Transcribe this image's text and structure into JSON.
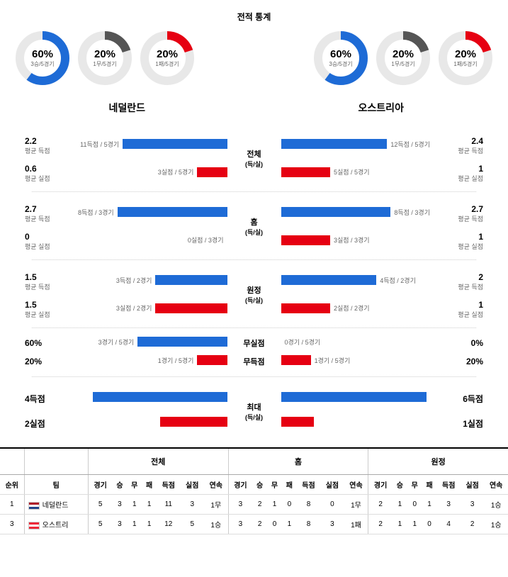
{
  "title": "전적 통계",
  "colors": {
    "blue": "#1e6bd6",
    "red": "#e60012",
    "gray": "#555",
    "arcbg": "#e8e8e8"
  },
  "teams": {
    "left": "네덜란드",
    "right": "오스트리아"
  },
  "donuts": {
    "left": [
      {
        "pct": "60%",
        "sub": "3승/5경기",
        "value": 60,
        "color": "#1e6bd6"
      },
      {
        "pct": "20%",
        "sub": "1무/5경기",
        "value": 20,
        "color": "#555"
      },
      {
        "pct": "20%",
        "sub": "1패/5경기",
        "value": 20,
        "color": "#e60012"
      }
    ],
    "right": [
      {
        "pct": "60%",
        "sub": "3승/5경기",
        "value": 60,
        "color": "#1e6bd6"
      },
      {
        "pct": "20%",
        "sub": "1무/5경기",
        "value": 20,
        "color": "#555"
      },
      {
        "pct": "20%",
        "sub": "1패/5경기",
        "value": 20,
        "color": "#e60012"
      }
    ]
  },
  "sections": [
    {
      "center": "전체",
      "centerSub": "(득/실)",
      "rows": [
        {
          "lVal": "2.2",
          "lSub": "평균 득점",
          "lBar": 70,
          "lBarLabel": "11득점 / 5경기",
          "lColor": "#1e6bd6",
          "rVal": "2.4",
          "rSub": "평균 득점",
          "rBar": 76,
          "rBarLabel": "12득점 / 5경기",
          "rColor": "#1e6bd6"
        },
        {
          "lVal": "0.6",
          "lSub": "평균 실점",
          "lBar": 20,
          "lBarLabel": "3실점 / 5경기",
          "lColor": "#e60012",
          "rVal": "1",
          "rSub": "평균 실점",
          "rBar": 33,
          "rBarLabel": "5실점 / 5경기",
          "rColor": "#e60012"
        }
      ]
    },
    {
      "center": "홈",
      "centerSub": "(득/실)",
      "rows": [
        {
          "lVal": "2.7",
          "lSub": "평균 득점",
          "lBar": 86,
          "lBarLabel": "8득점 / 3경기",
          "lColor": "#1e6bd6",
          "rVal": "2.7",
          "rSub": "평균 득점",
          "rBar": 86,
          "rBarLabel": "8득점 / 3경기",
          "rColor": "#1e6bd6"
        },
        {
          "lVal": "0",
          "lSub": "평균 실점",
          "lBar": 0,
          "lBarLabel": "0실점 / 3경기",
          "lColor": "#e60012",
          "rVal": "1",
          "rSub": "평균 실점",
          "rBar": 33,
          "rBarLabel": "3실점 / 3경기",
          "rColor": "#e60012"
        }
      ]
    },
    {
      "center": "원정",
      "centerSub": "(득/실)",
      "rows": [
        {
          "lVal": "1.5",
          "lSub": "평균 득점",
          "lBar": 48,
          "lBarLabel": "3득점 / 2경기",
          "lColor": "#1e6bd6",
          "rVal": "2",
          "rSub": "평균 득점",
          "rBar": 64,
          "rBarLabel": "4득점 / 2경기",
          "rColor": "#1e6bd6"
        },
        {
          "lVal": "1.5",
          "lSub": "평균 실점",
          "lBar": 48,
          "lBarLabel": "3실점 / 2경기",
          "lColor": "#e60012",
          "rVal": "1",
          "rSub": "평균 실점",
          "rBar": 33,
          "rBarLabel": "2실점 / 2경기",
          "rColor": "#e60012"
        }
      ]
    },
    {
      "rows": [
        {
          "lVal": "60%",
          "lSub": "",
          "lBar": 60,
          "lBarLabel": "3경기 / 5경기",
          "lColor": "#1e6bd6",
          "centerLabel": "무실점",
          "rVal": "0%",
          "rSub": "",
          "rBar": 0,
          "rBarLabel": "0경기 / 5경기",
          "rColor": "#1e6bd6"
        },
        {
          "lVal": "20%",
          "lSub": "",
          "lBar": 20,
          "lBarLabel": "1경기 / 5경기",
          "lColor": "#e60012",
          "centerLabel": "무득점",
          "rVal": "20%",
          "rSub": "",
          "rBar": 20,
          "rBarLabel": "1경기 / 5경기",
          "rColor": "#e60012"
        }
      ]
    },
    {
      "center": "최대",
      "centerSub": "(득/실)",
      "rows": [
        {
          "lVal": "4득점",
          "lSub": "",
          "lBar": 90,
          "lBarLabel": "",
          "lColor": "#1e6bd6",
          "rVal": "6득점",
          "rSub": "",
          "rBar": 100,
          "rBarLabel": "",
          "rColor": "#1e6bd6"
        },
        {
          "lVal": "2실점",
          "lSub": "",
          "lBar": 45,
          "lBarLabel": "",
          "lColor": "#e60012",
          "rVal": "1실점",
          "rSub": "",
          "rBar": 22,
          "rBarLabel": "",
          "rColor": "#e60012"
        }
      ]
    }
  ],
  "table": {
    "groupHeaders": [
      "",
      "",
      "전체",
      "홈",
      "원정"
    ],
    "headers": [
      "순위",
      "팀",
      "경기",
      "승",
      "무",
      "패",
      "득점",
      "실점",
      "연속",
      "경기",
      "승",
      "무",
      "패",
      "득점",
      "실점",
      "연속",
      "경기",
      "승",
      "무",
      "패",
      "득점",
      "실점",
      "연속"
    ],
    "rows": [
      {
        "rank": "1",
        "flag": "nl",
        "team": "네덜란드",
        "cells": [
          "5",
          "3",
          "1",
          "1",
          "11",
          "3",
          "1무",
          "3",
          "2",
          "1",
          "0",
          "8",
          "0",
          "1무",
          "2",
          "1",
          "0",
          "1",
          "3",
          "3",
          "1승"
        ]
      },
      {
        "rank": "3",
        "flag": "at",
        "team": "오스트리",
        "cells": [
          "5",
          "3",
          "1",
          "1",
          "12",
          "5",
          "1승",
          "3",
          "2",
          "0",
          "1",
          "8",
          "3",
          "1패",
          "2",
          "1",
          "1",
          "0",
          "4",
          "2",
          "1승"
        ]
      }
    ]
  }
}
